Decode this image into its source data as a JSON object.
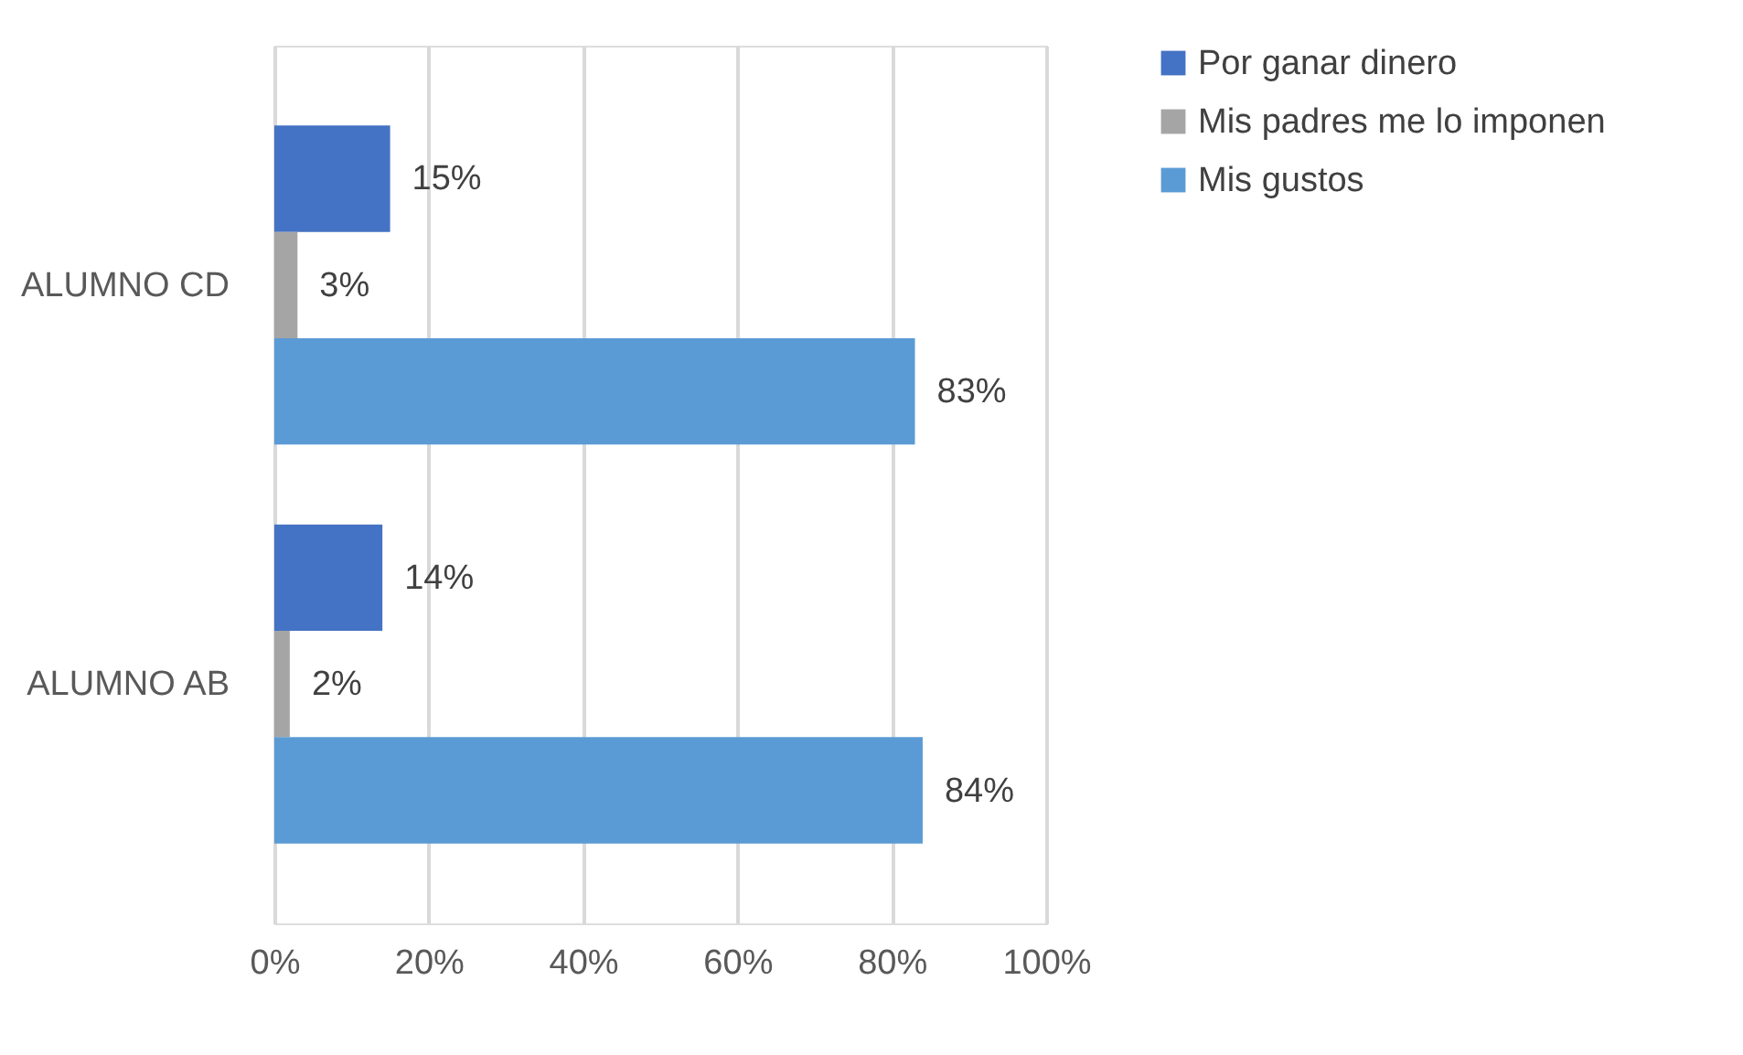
{
  "chart_data": {
    "type": "bar",
    "orientation": "horizontal",
    "categories": [
      "ALUMNO CD",
      "ALUMNO AB"
    ],
    "series": [
      {
        "name": "Por ganar dinero",
        "color": "#4472c4",
        "values": [
          15,
          14
        ],
        "value_labels": [
          "15%",
          "14%"
        ]
      },
      {
        "name": "Mis padres me lo imponen",
        "color": "#a5a5a5",
        "values": [
          3,
          2
        ],
        "value_labels": [
          "3%",
          "2%"
        ]
      },
      {
        "name": "Mis gustos",
        "color": "#5b9bd5",
        "values": [
          83,
          84
        ],
        "value_labels": [
          "83%",
          "84%"
        ]
      }
    ],
    "xlim": [
      0,
      100
    ],
    "xticks": [
      {
        "value": 0,
        "label": "0%"
      },
      {
        "value": 20,
        "label": "20%"
      },
      {
        "value": 40,
        "label": "40%"
      },
      {
        "value": 60,
        "label": "60%"
      },
      {
        "value": 80,
        "label": "80%"
      },
      {
        "value": 100,
        "label": "100%"
      }
    ],
    "grid": "x",
    "legend": "right"
  }
}
